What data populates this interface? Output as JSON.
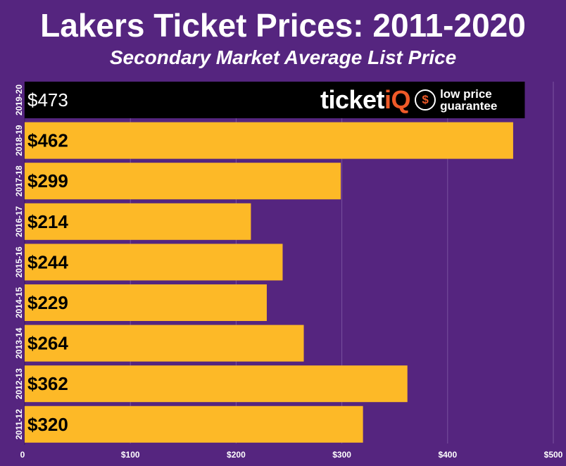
{
  "chart_data": {
    "type": "bar",
    "orientation": "horizontal",
    "title": "Lakers Ticket Prices: 2011-2020",
    "subtitle": "Secondary Market Average List Price",
    "categories": [
      "2019-20",
      "2018-19",
      "2017-18",
      "2016-17",
      "2015-16",
      "2014-15",
      "2013-14",
      "2012-13",
      "2011-12"
    ],
    "values": [
      473,
      462,
      299,
      214,
      244,
      229,
      264,
      362,
      320
    ],
    "value_labels": [
      "$473",
      "$462",
      "$299",
      "$214",
      "$244",
      "$229",
      "$264",
      "$362",
      "$320"
    ],
    "xlim": [
      0,
      500
    ],
    "xticks": [
      0,
      100,
      200,
      300,
      400,
      500
    ],
    "xtick_labels": [
      "0",
      "$100",
      "$200",
      "$300",
      "$400",
      "$500"
    ],
    "grid": true,
    "bar_color": "#fdb927",
    "highlight_bar_color": "#000000",
    "background_color": "#55257f"
  },
  "logo": {
    "word_left": "ticket",
    "word_right": "iQ",
    "badge": "$",
    "tagline": "low price\nguarantee",
    "accent_color": "#f05a28"
  }
}
